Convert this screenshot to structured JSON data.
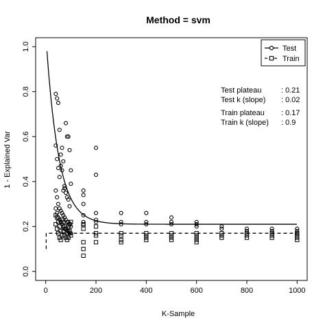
{
  "chart_data": {
    "type": "scatter",
    "title": "Method = svm",
    "xlabel": "K-Sample",
    "ylabel": "1 - Explained Var",
    "xlim": [
      0,
      1000
    ],
    "ylim": [
      0,
      1.0
    ],
    "x_ticks": [
      0,
      200,
      400,
      600,
      800,
      1000
    ],
    "y_ticks": [
      0.0,
      0.2,
      0.4,
      0.6,
      0.8,
      1.0
    ],
    "x_tick_labels": [
      "0",
      "200",
      "400",
      "600",
      "800",
      "1000"
    ],
    "y_tick_labels": [
      "0.0",
      "0.2",
      "0.4",
      "0.6",
      "0.8",
      "1.0"
    ],
    "grid": false,
    "legend_position": "top-right",
    "legend": [
      {
        "name": "Test",
        "marker": "circle",
        "line": "solid"
      },
      {
        "name": "Train",
        "marker": "square",
        "line": "dashed"
      }
    ],
    "annotations": [
      {
        "label": "Test  plateau",
        "value": ": 0.21"
      },
      {
        "label": "Test  k (slope)",
        "value": ": 0.02"
      },
      {
        "label": "Train plateau",
        "value": ": 0.17"
      },
      {
        "label": "Train k (slope)",
        "value": ": 0.9"
      }
    ],
    "test_curve": {
      "plateau": 0.21,
      "k": 0.02,
      "start": 0.98,
      "x0": 5
    },
    "train_curve": {
      "plateau": 0.17,
      "start": 0.1,
      "x0": 2,
      "knee": 5
    },
    "series": [
      {
        "name": "Test",
        "marker": "circle",
        "points": [
          [
            40,
            0.79
          ],
          [
            45,
            0.77
          ],
          [
            50,
            0.75
          ],
          [
            55,
            0.63
          ],
          [
            60,
            0.52
          ],
          [
            65,
            0.55
          ],
          [
            70,
            0.49
          ],
          [
            75,
            0.38
          ],
          [
            80,
            0.66
          ],
          [
            85,
            0.6
          ],
          [
            90,
            0.6
          ],
          [
            95,
            0.54
          ],
          [
            100,
            0.45
          ],
          [
            40,
            0.56
          ],
          [
            45,
            0.5
          ],
          [
            50,
            0.46
          ],
          [
            55,
            0.42
          ],
          [
            60,
            0.47
          ],
          [
            65,
            0.45
          ],
          [
            70,
            0.36
          ],
          [
            75,
            0.37
          ],
          [
            80,
            0.35
          ],
          [
            85,
            0.33
          ],
          [
            90,
            0.32
          ],
          [
            95,
            0.29
          ],
          [
            100,
            0.39
          ],
          [
            40,
            0.36
          ],
          [
            45,
            0.33
          ],
          [
            50,
            0.3
          ],
          [
            55,
            0.28
          ],
          [
            60,
            0.27
          ],
          [
            65,
            0.26
          ],
          [
            70,
            0.25
          ],
          [
            75,
            0.24
          ],
          [
            80,
            0.23
          ],
          [
            85,
            0.22
          ],
          [
            90,
            0.22
          ],
          [
            95,
            0.21
          ],
          [
            100,
            0.2
          ],
          [
            40,
            0.28
          ],
          [
            45,
            0.26
          ],
          [
            50,
            0.24
          ],
          [
            55,
            0.23
          ],
          [
            60,
            0.22
          ],
          [
            65,
            0.21
          ],
          [
            70,
            0.2
          ],
          [
            75,
            0.19
          ],
          [
            80,
            0.19
          ],
          [
            85,
            0.18
          ],
          [
            90,
            0.18
          ],
          [
            95,
            0.17
          ],
          [
            100,
            0.17
          ],
          [
            150,
            0.36
          ],
          [
            150,
            0.34
          ],
          [
            150,
            0.3
          ],
          [
            150,
            0.25
          ],
          [
            150,
            0.22
          ],
          [
            150,
            0.21
          ],
          [
            200,
            0.55
          ],
          [
            200,
            0.43
          ],
          [
            200,
            0.26
          ],
          [
            200,
            0.23
          ],
          [
            200,
            0.22
          ],
          [
            300,
            0.26
          ],
          [
            300,
            0.22
          ],
          [
            300,
            0.21
          ],
          [
            400,
            0.26
          ],
          [
            400,
            0.22
          ],
          [
            400,
            0.21
          ],
          [
            500,
            0.24
          ],
          [
            500,
            0.22
          ],
          [
            500,
            0.21
          ],
          [
            600,
            0.22
          ],
          [
            600,
            0.21
          ],
          [
            600,
            0.2
          ],
          [
            700,
            0.2
          ],
          [
            700,
            0.19
          ],
          [
            800,
            0.19
          ],
          [
            800,
            0.18
          ],
          [
            900,
            0.19
          ],
          [
            900,
            0.18
          ],
          [
            1000,
            0.19
          ],
          [
            1000,
            0.18
          ],
          [
            1000,
            0.17
          ]
        ]
      },
      {
        "name": "Train",
        "marker": "square",
        "points": [
          [
            40,
            0.25
          ],
          [
            45,
            0.24
          ],
          [
            50,
            0.22
          ],
          [
            55,
            0.2
          ],
          [
            60,
            0.18
          ],
          [
            65,
            0.16
          ],
          [
            70,
            0.22
          ],
          [
            75,
            0.2
          ],
          [
            80,
            0.19
          ],
          [
            85,
            0.17
          ],
          [
            90,
            0.15
          ],
          [
            95,
            0.21
          ],
          [
            100,
            0.22
          ],
          [
            40,
            0.21
          ],
          [
            45,
            0.19
          ],
          [
            50,
            0.17
          ],
          [
            55,
            0.15
          ],
          [
            60,
            0.14
          ],
          [
            65,
            0.23
          ],
          [
            70,
            0.18
          ],
          [
            75,
            0.16
          ],
          [
            80,
            0.15
          ],
          [
            85,
            0.14
          ],
          [
            90,
            0.2
          ],
          [
            95,
            0.18
          ],
          [
            100,
            0.16
          ],
          [
            150,
            0.21
          ],
          [
            150,
            0.19
          ],
          [
            150,
            0.13
          ],
          [
            150,
            0.1
          ],
          [
            150,
            0.07
          ],
          [
            200,
            0.2
          ],
          [
            200,
            0.17
          ],
          [
            200,
            0.16
          ],
          [
            200,
            0.13
          ],
          [
            300,
            0.17
          ],
          [
            300,
            0.16
          ],
          [
            300,
            0.14
          ],
          [
            300,
            0.13
          ],
          [
            400,
            0.17
          ],
          [
            400,
            0.16
          ],
          [
            400,
            0.15
          ],
          [
            400,
            0.14
          ],
          [
            500,
            0.17
          ],
          [
            500,
            0.16
          ],
          [
            500,
            0.15
          ],
          [
            500,
            0.14
          ],
          [
            600,
            0.17
          ],
          [
            600,
            0.16
          ],
          [
            600,
            0.15
          ],
          [
            600,
            0.14
          ],
          [
            600,
            0.13
          ],
          [
            700,
            0.17
          ],
          [
            700,
            0.16
          ],
          [
            700,
            0.15
          ],
          [
            800,
            0.17
          ],
          [
            800,
            0.16
          ],
          [
            800,
            0.15
          ],
          [
            900,
            0.17
          ],
          [
            900,
            0.16
          ],
          [
            900,
            0.15
          ],
          [
            1000,
            0.17
          ],
          [
            1000,
            0.16
          ],
          [
            1000,
            0.15
          ],
          [
            1000,
            0.14
          ]
        ]
      }
    ]
  }
}
